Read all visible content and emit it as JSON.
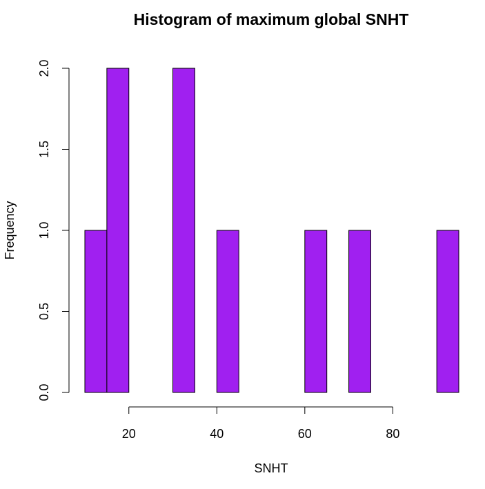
{
  "chart_data": {
    "type": "bar",
    "title": "Histogram of maximum global SNHT",
    "xlabel": "SNHT",
    "ylabel": "Frequency",
    "bar_color": "#a020f0",
    "bar_edge_color": "#000000",
    "xlim": [
      10,
      95
    ],
    "ylim": [
      0,
      2
    ],
    "bins": [
      {
        "start": 10,
        "end": 15,
        "count": 1
      },
      {
        "start": 15,
        "end": 20,
        "count": 2
      },
      {
        "start": 20,
        "end": 25,
        "count": 0
      },
      {
        "start": 25,
        "end": 30,
        "count": 0
      },
      {
        "start": 30,
        "end": 35,
        "count": 2
      },
      {
        "start": 35,
        "end": 40,
        "count": 0
      },
      {
        "start": 40,
        "end": 45,
        "count": 1
      },
      {
        "start": 45,
        "end": 50,
        "count": 0
      },
      {
        "start": 50,
        "end": 55,
        "count": 0
      },
      {
        "start": 55,
        "end": 60,
        "count": 0
      },
      {
        "start": 60,
        "end": 65,
        "count": 1
      },
      {
        "start": 65,
        "end": 70,
        "count": 0
      },
      {
        "start": 70,
        "end": 75,
        "count": 1
      },
      {
        "start": 75,
        "end": 80,
        "count": 0
      },
      {
        "start": 80,
        "end": 85,
        "count": 0
      },
      {
        "start": 85,
        "end": 90,
        "count": 0
      },
      {
        "start": 90,
        "end": 95,
        "count": 1
      }
    ],
    "x_ticks": [
      20,
      40,
      60,
      80
    ],
    "x_tick_labels": [
      "20",
      "40",
      "60",
      "80"
    ],
    "x_axis_range": [
      20,
      80
    ],
    "y_ticks": [
      0,
      0.5,
      1,
      1.5,
      2
    ],
    "y_tick_labels": [
      "0.0",
      "0.5",
      "1.0",
      "1.5",
      "2.0"
    ]
  }
}
